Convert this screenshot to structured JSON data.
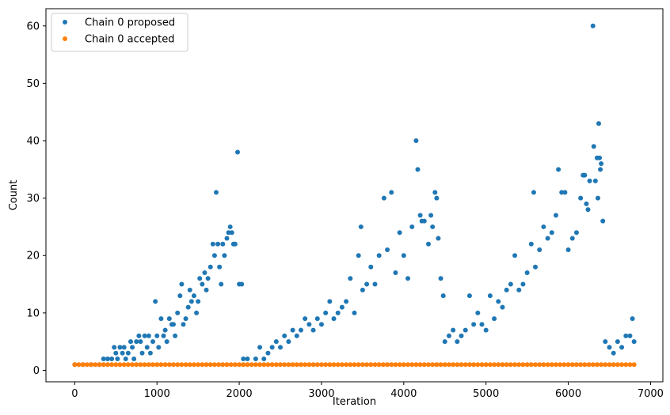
{
  "chart_data": {
    "type": "scatter",
    "title": "",
    "xlabel": "Iteration",
    "ylabel": "Count",
    "xlim": [
      -350,
      7150
    ],
    "ylim": [
      -2,
      63
    ],
    "x_ticks": [
      0,
      1000,
      2000,
      3000,
      4000,
      5000,
      6000,
      7000
    ],
    "y_ticks": [
      0,
      10,
      20,
      30,
      40,
      50,
      60
    ],
    "grid": false,
    "legend_position": "top-left",
    "series": [
      {
        "name": "Chain 0 proposed",
        "color": "#1f77b4",
        "points": [
          [
            0,
            1
          ],
          [
            100,
            1
          ],
          [
            200,
            1
          ],
          [
            300,
            1
          ],
          [
            350,
            2
          ],
          [
            400,
            2
          ],
          [
            450,
            2
          ],
          [
            480,
            4
          ],
          [
            500,
            3
          ],
          [
            520,
            2
          ],
          [
            550,
            4
          ],
          [
            580,
            3
          ],
          [
            600,
            4
          ],
          [
            620,
            2
          ],
          [
            650,
            3
          ],
          [
            680,
            5
          ],
          [
            700,
            4
          ],
          [
            720,
            2
          ],
          [
            750,
            5
          ],
          [
            780,
            6
          ],
          [
            800,
            5
          ],
          [
            820,
            3
          ],
          [
            850,
            6
          ],
          [
            880,
            4
          ],
          [
            900,
            6
          ],
          [
            920,
            3
          ],
          [
            950,
            5
          ],
          [
            980,
            12
          ],
          [
            1000,
            6
          ],
          [
            1020,
            4
          ],
          [
            1050,
            9
          ],
          [
            1080,
            6
          ],
          [
            1100,
            7
          ],
          [
            1120,
            5
          ],
          [
            1150,
            9
          ],
          [
            1180,
            8
          ],
          [
            1200,
            8
          ],
          [
            1220,
            6
          ],
          [
            1250,
            10
          ],
          [
            1280,
            13
          ],
          [
            1300,
            15
          ],
          [
            1320,
            8
          ],
          [
            1350,
            9
          ],
          [
            1380,
            11
          ],
          [
            1400,
            14
          ],
          [
            1420,
            12
          ],
          [
            1450,
            13
          ],
          [
            1480,
            10
          ],
          [
            1500,
            12
          ],
          [
            1520,
            16
          ],
          [
            1550,
            15
          ],
          [
            1580,
            17
          ],
          [
            1600,
            14
          ],
          [
            1620,
            16
          ],
          [
            1650,
            18
          ],
          [
            1680,
            22
          ],
          [
            1700,
            20
          ],
          [
            1720,
            31
          ],
          [
            1740,
            22
          ],
          [
            1760,
            18
          ],
          [
            1780,
            15
          ],
          [
            1800,
            22
          ],
          [
            1820,
            20
          ],
          [
            1850,
            23
          ],
          [
            1870,
            24
          ],
          [
            1890,
            25
          ],
          [
            1910,
            24
          ],
          [
            1930,
            22
          ],
          [
            1950,
            22
          ],
          [
            1980,
            38
          ],
          [
            2000,
            15
          ],
          [
            2030,
            15
          ],
          [
            2050,
            2
          ],
          [
            2100,
            2
          ],
          [
            2200,
            2
          ],
          [
            2250,
            4
          ],
          [
            2300,
            2
          ],
          [
            2350,
            3
          ],
          [
            2400,
            4
          ],
          [
            2450,
            5
          ],
          [
            2500,
            4
          ],
          [
            2550,
            6
          ],
          [
            2600,
            5
          ],
          [
            2650,
            7
          ],
          [
            2700,
            6
          ],
          [
            2750,
            7
          ],
          [
            2800,
            9
          ],
          [
            2850,
            8
          ],
          [
            2900,
            7
          ],
          [
            2950,
            9
          ],
          [
            3000,
            8
          ],
          [
            3050,
            10
          ],
          [
            3100,
            12
          ],
          [
            3150,
            9
          ],
          [
            3200,
            10
          ],
          [
            3250,
            11
          ],
          [
            3300,
            12
          ],
          [
            3350,
            16
          ],
          [
            3400,
            10
          ],
          [
            3450,
            20
          ],
          [
            3480,
            25
          ],
          [
            3500,
            14
          ],
          [
            3550,
            15
          ],
          [
            3600,
            18
          ],
          [
            3650,
            15
          ],
          [
            3700,
            20
          ],
          [
            3760,
            30
          ],
          [
            3800,
            21
          ],
          [
            3850,
            31
          ],
          [
            3900,
            17
          ],
          [
            3950,
            24
          ],
          [
            4000,
            20
          ],
          [
            4050,
            16
          ],
          [
            4100,
            25
          ],
          [
            4150,
            40
          ],
          [
            4170,
            35
          ],
          [
            4200,
            27
          ],
          [
            4220,
            26
          ],
          [
            4250,
            26
          ],
          [
            4300,
            22
          ],
          [
            4330,
            27
          ],
          [
            4350,
            25
          ],
          [
            4380,
            31
          ],
          [
            4400,
            30
          ],
          [
            4420,
            23
          ],
          [
            4450,
            16
          ],
          [
            4480,
            13
          ],
          [
            4500,
            5
          ],
          [
            4550,
            6
          ],
          [
            4600,
            7
          ],
          [
            4650,
            5
          ],
          [
            4700,
            6
          ],
          [
            4750,
            7
          ],
          [
            4800,
            13
          ],
          [
            4850,
            8
          ],
          [
            4900,
            10
          ],
          [
            4950,
            8
          ],
          [
            5000,
            7
          ],
          [
            5050,
            13
          ],
          [
            5100,
            9
          ],
          [
            5150,
            12
          ],
          [
            5200,
            11
          ],
          [
            5250,
            14
          ],
          [
            5300,
            15
          ],
          [
            5350,
            20
          ],
          [
            5400,
            14
          ],
          [
            5450,
            15
          ],
          [
            5500,
            17
          ],
          [
            5550,
            22
          ],
          [
            5580,
            31
          ],
          [
            5600,
            18
          ],
          [
            5650,
            21
          ],
          [
            5700,
            25
          ],
          [
            5750,
            23
          ],
          [
            5800,
            24
          ],
          [
            5850,
            27
          ],
          [
            5880,
            35
          ],
          [
            5920,
            31
          ],
          [
            5960,
            31
          ],
          [
            6000,
            21
          ],
          [
            6050,
            23
          ],
          [
            6100,
            24
          ],
          [
            6150,
            30
          ],
          [
            6180,
            34
          ],
          [
            6200,
            34
          ],
          [
            6220,
            29
          ],
          [
            6240,
            28
          ],
          [
            6260,
            33
          ],
          [
            6300,
            60
          ],
          [
            6310,
            39
          ],
          [
            6330,
            33
          ],
          [
            6350,
            37
          ],
          [
            6360,
            30
          ],
          [
            6370,
            43
          ],
          [
            6380,
            37
          ],
          [
            6390,
            35
          ],
          [
            6400,
            36
          ],
          [
            6420,
            26
          ],
          [
            6450,
            5
          ],
          [
            6500,
            4
          ],
          [
            6550,
            3
          ],
          [
            6600,
            5
          ],
          [
            6650,
            4
          ],
          [
            6700,
            6
          ],
          [
            6750,
            6
          ],
          [
            6780,
            9
          ],
          [
            6800,
            5
          ]
        ]
      },
      {
        "name": "Chain 0 accepted",
        "color": "#ff7f0e",
        "points": [
          [
            0,
            1
          ],
          [
            50,
            1
          ],
          [
            100,
            1
          ],
          [
            150,
            1
          ],
          [
            200,
            1
          ],
          [
            250,
            1
          ],
          [
            300,
            1
          ],
          [
            350,
            1
          ],
          [
            400,
            1
          ],
          [
            450,
            1
          ],
          [
            500,
            1
          ],
          [
            550,
            1
          ],
          [
            600,
            1
          ],
          [
            650,
            1
          ],
          [
            700,
            1
          ],
          [
            750,
            1
          ],
          [
            800,
            1
          ],
          [
            850,
            1
          ],
          [
            900,
            1
          ],
          [
            950,
            1
          ],
          [
            1000,
            1
          ],
          [
            1050,
            1
          ],
          [
            1100,
            1
          ],
          [
            1150,
            1
          ],
          [
            1200,
            1
          ],
          [
            1250,
            1
          ],
          [
            1300,
            1
          ],
          [
            1350,
            1
          ],
          [
            1400,
            1
          ],
          [
            1450,
            1
          ],
          [
            1500,
            1
          ],
          [
            1550,
            1
          ],
          [
            1600,
            1
          ],
          [
            1650,
            1
          ],
          [
            1700,
            1
          ],
          [
            1750,
            1
          ],
          [
            1800,
            1
          ],
          [
            1850,
            1
          ],
          [
            1900,
            1
          ],
          [
            1950,
            1
          ],
          [
            2000,
            1
          ],
          [
            2050,
            1
          ],
          [
            2100,
            1
          ],
          [
            2150,
            1
          ],
          [
            2200,
            1
          ],
          [
            2250,
            1
          ],
          [
            2300,
            1
          ],
          [
            2350,
            1
          ],
          [
            2400,
            1
          ],
          [
            2450,
            1
          ],
          [
            2500,
            1
          ],
          [
            2550,
            1
          ],
          [
            2600,
            1
          ],
          [
            2650,
            1
          ],
          [
            2700,
            1
          ],
          [
            2750,
            1
          ],
          [
            2800,
            1
          ],
          [
            2850,
            1
          ],
          [
            2900,
            1
          ],
          [
            2950,
            1
          ],
          [
            3000,
            1
          ],
          [
            3050,
            1
          ],
          [
            3100,
            1
          ],
          [
            3150,
            1
          ],
          [
            3200,
            1
          ],
          [
            3250,
            1
          ],
          [
            3300,
            1
          ],
          [
            3350,
            1
          ],
          [
            3400,
            1
          ],
          [
            3450,
            1
          ],
          [
            3500,
            1
          ],
          [
            3550,
            1
          ],
          [
            3600,
            1
          ],
          [
            3650,
            1
          ],
          [
            3700,
            1
          ],
          [
            3750,
            1
          ],
          [
            3800,
            1
          ],
          [
            3850,
            1
          ],
          [
            3900,
            1
          ],
          [
            3950,
            1
          ],
          [
            4000,
            1
          ],
          [
            4050,
            1
          ],
          [
            4100,
            1
          ],
          [
            4150,
            1
          ],
          [
            4200,
            1
          ],
          [
            4250,
            1
          ],
          [
            4300,
            1
          ],
          [
            4350,
            1
          ],
          [
            4400,
            1
          ],
          [
            4450,
            1
          ],
          [
            4500,
            1
          ],
          [
            4550,
            1
          ],
          [
            4600,
            1
          ],
          [
            4650,
            1
          ],
          [
            4700,
            1
          ],
          [
            4750,
            1
          ],
          [
            4800,
            1
          ],
          [
            4850,
            1
          ],
          [
            4900,
            1
          ],
          [
            4950,
            1
          ],
          [
            5000,
            1
          ],
          [
            5050,
            1
          ],
          [
            5100,
            1
          ],
          [
            5150,
            1
          ],
          [
            5200,
            1
          ],
          [
            5250,
            1
          ],
          [
            5300,
            1
          ],
          [
            5350,
            1
          ],
          [
            5400,
            1
          ],
          [
            5450,
            1
          ],
          [
            5500,
            1
          ],
          [
            5550,
            1
          ],
          [
            5600,
            1
          ],
          [
            5650,
            1
          ],
          [
            5700,
            1
          ],
          [
            5750,
            1
          ],
          [
            5800,
            1
          ],
          [
            5850,
            1
          ],
          [
            5900,
            1
          ],
          [
            5950,
            1
          ],
          [
            6000,
            1
          ],
          [
            6050,
            1
          ],
          [
            6100,
            1
          ],
          [
            6150,
            1
          ],
          [
            6200,
            1
          ],
          [
            6250,
            1
          ],
          [
            6300,
            1
          ],
          [
            6350,
            1
          ],
          [
            6400,
            1
          ],
          [
            6450,
            1
          ],
          [
            6500,
            1
          ],
          [
            6550,
            1
          ],
          [
            6600,
            1
          ],
          [
            6650,
            1
          ],
          [
            6700,
            1
          ],
          [
            6750,
            1
          ],
          [
            6800,
            1
          ]
        ]
      }
    ]
  }
}
